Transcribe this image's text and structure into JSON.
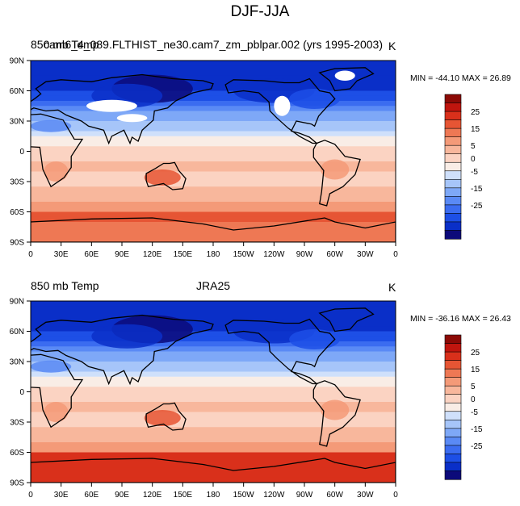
{
  "page_title": "DJF-JJA",
  "colorbar_colors": [
    "#0c0a7a",
    "#0a2fc8",
    "#1d4fe6",
    "#3b6cf0",
    "#5a8af5",
    "#7ea8f7",
    "#a6c5f9",
    "#cfe0fb",
    "#f9ede6",
    "#fbd3c2",
    "#f8b79c",
    "#f49a78",
    "#ee7854",
    "#e65534",
    "#d9301b",
    "#c0150e",
    "#8c0a06"
  ],
  "colorbar_labels": [
    "25",
    "15",
    "5",
    "0",
    "-5",
    "-15",
    "-25"
  ],
  "panels": [
    {
      "title_left": "850 mb Temp",
      "title_center": "cam6_4_089.FLTHIST_ne30.cam7_zm_pblpar.002 (yrs 1995-2003)",
      "units": "K",
      "minmax": "MIN = -44.10 MAX =  26.89"
    },
    {
      "title_left": "850 mb Temp",
      "title_center": "JRA25",
      "units": "K",
      "minmax": "MIN = -36.16 MAX =  26.43"
    }
  ],
  "chart_data": [
    {
      "type": "heatmap",
      "title": "cam6_4_089.FLTHIST_ne30.cam7_zm_pblpar.002 (yrs 1995-2003)",
      "units": "K",
      "min": -44.1,
      "max": 26.89,
      "xticks": [
        "0",
        "30E",
        "60E",
        "90E",
        "120E",
        "150E",
        "180",
        "150W",
        "120W",
        "90W",
        "60W",
        "30W",
        "0"
      ],
      "yticks": [
        "90N",
        "60N",
        "30N",
        "0",
        "30S",
        "60S",
        "90S"
      ],
      "colorbar_levels": [
        "25",
        "15",
        "5",
        "0",
        "-5",
        "-15",
        "-25"
      ]
    },
    {
      "type": "heatmap",
      "title": "JRA25",
      "units": "K",
      "min": -36.16,
      "max": 26.43,
      "xticks": [
        "0",
        "30E",
        "60E",
        "90E",
        "120E",
        "150E",
        "180",
        "150W",
        "120W",
        "90W",
        "60W",
        "30W",
        "0"
      ],
      "yticks": [
        "90N",
        "60N",
        "30N",
        "0",
        "30S",
        "60S",
        "90S"
      ],
      "colorbar_levels": [
        "25",
        "15",
        "5",
        "0",
        "-5",
        "-15",
        "-25"
      ]
    }
  ]
}
